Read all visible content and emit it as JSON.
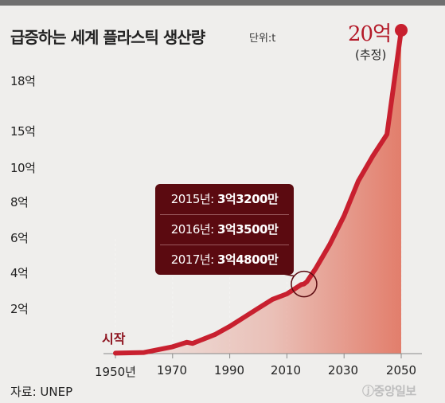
{
  "title": "급증하는 세계 플라스틱 생산량",
  "unit": "단위:t",
  "end_value": "20억",
  "end_note": "(추정)",
  "start_label": "시작",
  "callout": [
    {
      "year": "2015년:",
      "value": "3억3200만"
    },
    {
      "year": "2016년:",
      "value": "3억3500만"
    },
    {
      "year": "2017년:",
      "value": "3억4800만"
    }
  ],
  "source": "자료: UNEP",
  "logo_text": "중앙일보",
  "colors": {
    "line": "#c8202f",
    "fill": "#e06a55",
    "callout": "#5b0a10",
    "accent": "#b41a29"
  },
  "chart_data": {
    "type": "area",
    "title": "급증하는 세계 플라스틱 생산량",
    "unit": "단위:t",
    "y_tick_labels": [
      "2억",
      "4억",
      "6억",
      "8억",
      "10억",
      "15억",
      "18억"
    ],
    "x_tick_labels": [
      "1950년",
      "1970",
      "1990",
      "2010",
      "2030",
      "2050"
    ],
    "x_ticks": [
      1950,
      1970,
      1990,
      2010,
      2030,
      2050
    ],
    "series": [
      {
        "x": [
          1950,
          1960,
          1970,
          1975,
          1977,
          1980,
          1985,
          1990,
          1995,
          2000,
          2005,
          2010,
          2015,
          2016,
          2017,
          2020,
          2025,
          2030,
          2035,
          2040,
          2045,
          2050
        ],
        "y": [
          0.02,
          0.05,
          0.3,
          0.5,
          0.45,
          0.6,
          0.85,
          1.2,
          1.6,
          2.0,
          2.5,
          2.8,
          3.32,
          3.35,
          3.48,
          4.2,
          5.6,
          7.2,
          9.2,
          11.5,
          14.5,
          20
        ]
      }
    ],
    "callout_points": [
      {
        "year": 2015,
        "value": 3.32
      },
      {
        "year": 2016,
        "value": 3.35
      },
      {
        "year": 2017,
        "value": 3.48
      }
    ]
  }
}
